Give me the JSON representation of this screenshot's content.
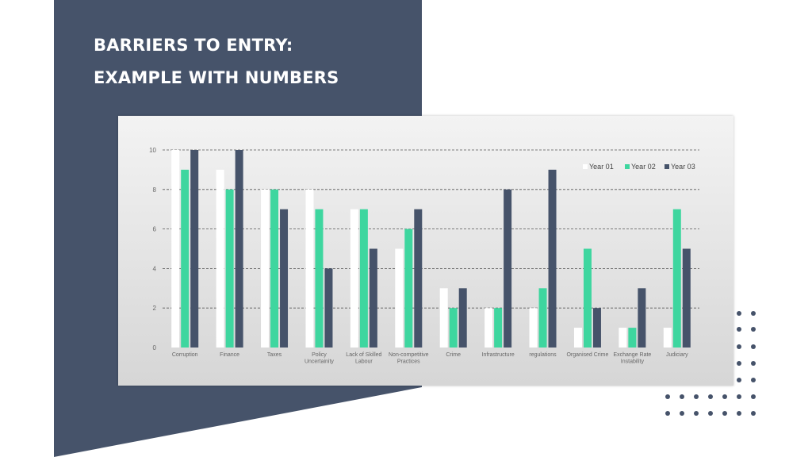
{
  "slide": {
    "title_line1": "BARRIERS TO ENTRY:",
    "title_line2": "EXAMPLE WITH NUMBERS"
  },
  "colors": {
    "navy": "#46536a",
    "year01": "#ffffff",
    "year02": "#3ed69f",
    "year03": "#46536a",
    "dots": "#46536a"
  },
  "chart_data": {
    "type": "bar",
    "title": "",
    "xlabel": "",
    "ylabel": "",
    "ylim": [
      0,
      10
    ],
    "yticks": [
      0,
      2,
      4,
      6,
      8,
      10
    ],
    "grid": true,
    "legend_position": "top-right",
    "categories": [
      [
        "Corruption"
      ],
      [
        "Finance"
      ],
      [
        "Taxes"
      ],
      [
        "Policy",
        "Uncertainity"
      ],
      [
        "Lack of Skilled",
        "Labour"
      ],
      [
        "Non-competitive",
        "Practices"
      ],
      [
        "Crime"
      ],
      [
        "Infrastructure"
      ],
      [
        "regulations"
      ],
      [
        "Organised Crime"
      ],
      [
        "Exchange Rate",
        "Instability"
      ],
      [
        "Judiciary"
      ]
    ],
    "series": [
      {
        "name": "Year 01",
        "color": "#ffffff",
        "values": [
          10,
          9,
          8,
          8,
          7,
          5,
          3,
          2,
          2,
          1,
          1,
          1
        ]
      },
      {
        "name": "Year 02",
        "color": "#3ed69f",
        "values": [
          9,
          8,
          8,
          7,
          7,
          6,
          2,
          2,
          3,
          5,
          1,
          7
        ]
      },
      {
        "name": "Year 03",
        "color": "#46536a",
        "values": [
          10,
          10,
          7,
          4,
          5,
          7,
          3,
          8,
          9,
          2,
          3,
          5
        ]
      }
    ]
  }
}
